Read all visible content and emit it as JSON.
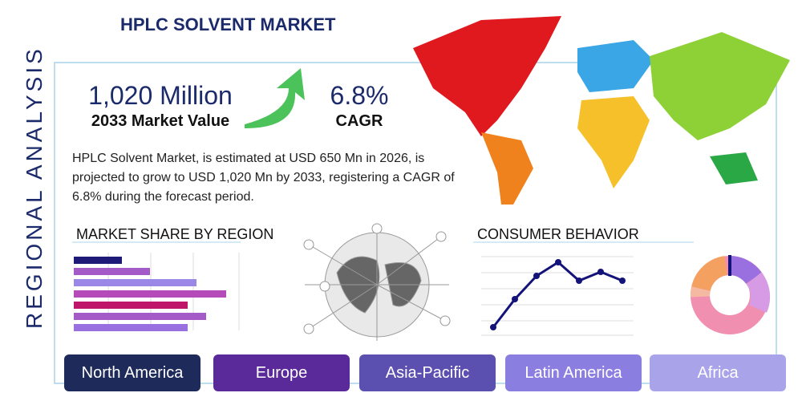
{
  "header": {
    "title": "HPLC SOLVENT MARKET",
    "side_title": "REGIONAL ANALYSIS"
  },
  "stats": {
    "value": "1,020 Million",
    "value_label": "2033 Market Value",
    "cagr": "6.8%",
    "cagr_label": "CAGR"
  },
  "description": "HPLC Solvent Market, is estimated at USD 650 Mn in 2026, is projected to grow to USD 1,020 Mn by 2033, registering a CAGR of 6.8% during the forecast period.",
  "sections": {
    "share": "MARKET SHARE BY REGION",
    "behavior": "CONSUMER BEHAVIOR"
  },
  "regions": [
    "North America",
    "Europe",
    "Asia-Pacific",
    "Latin America",
    "Africa"
  ]
}
